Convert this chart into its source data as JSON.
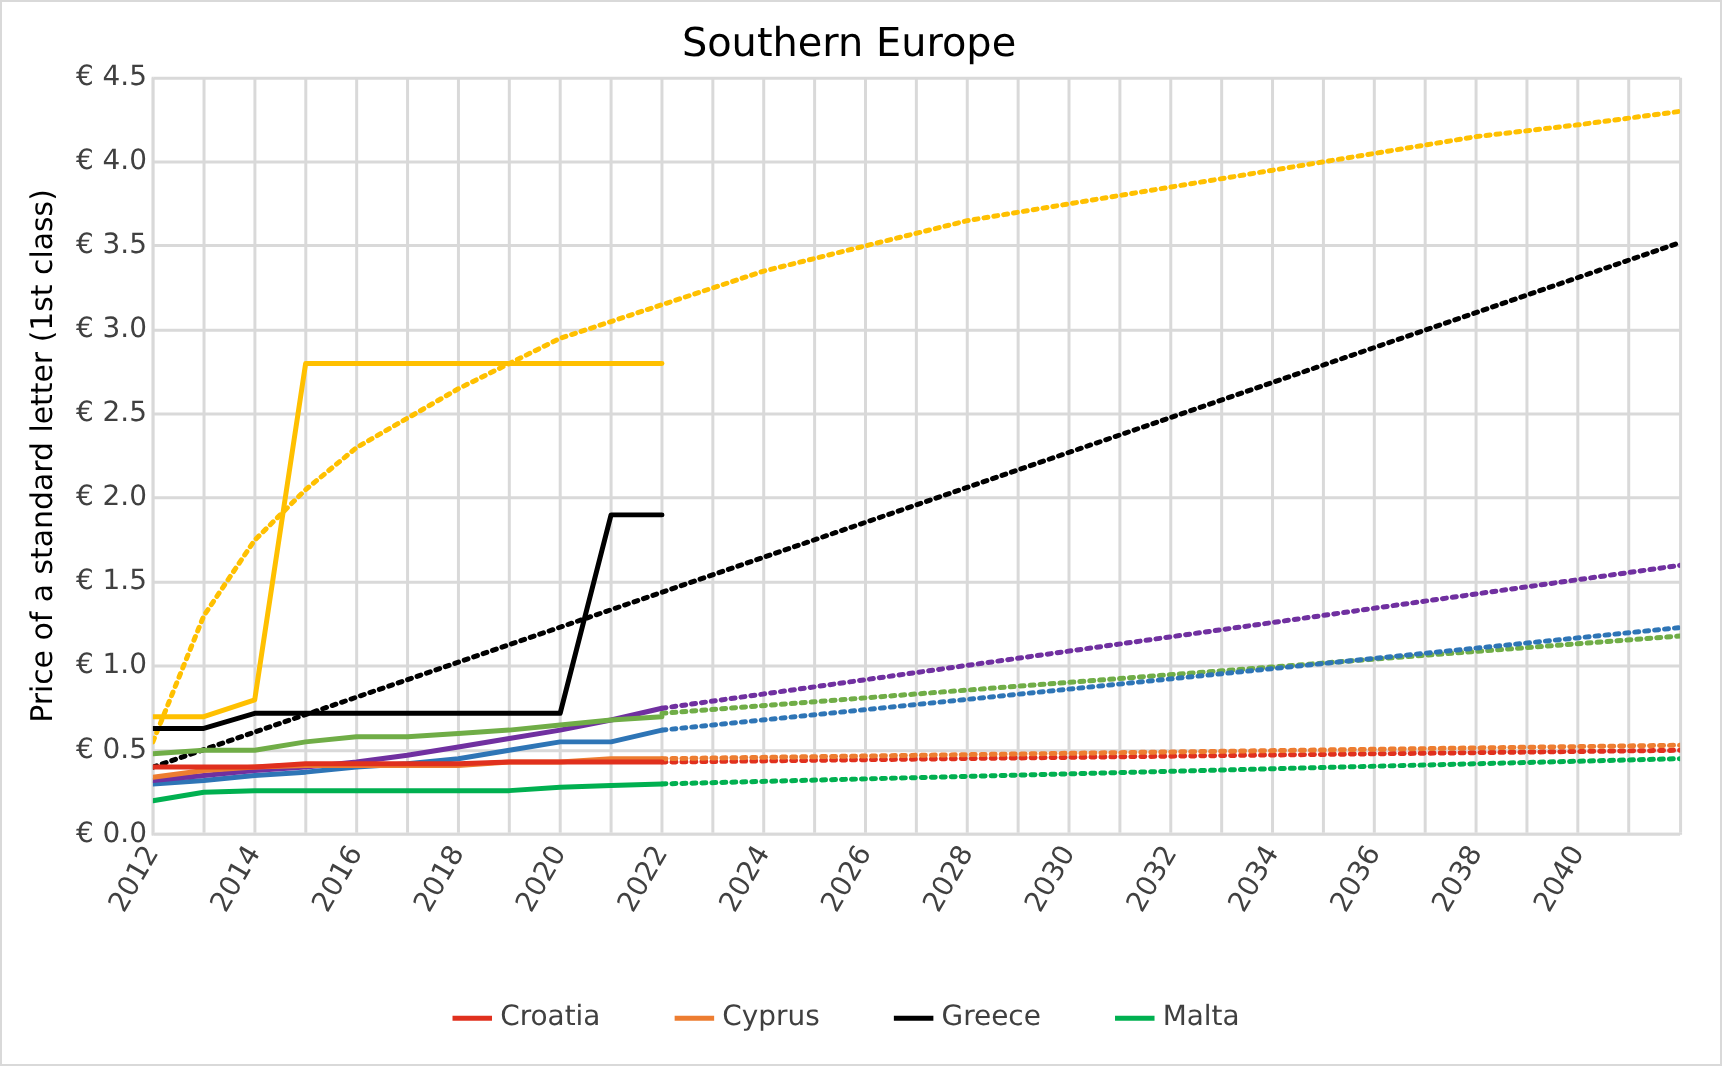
{
  "chart_data": {
    "type": "line",
    "title": "Southern Europe",
    "ylabel": "Price of a standard letter (1st class)",
    "x": [
      2012,
      2013,
      2014,
      2015,
      2016,
      2017,
      2018,
      2019,
      2020,
      2021,
      2022
    ],
    "xlim": [
      2012,
      2042
    ],
    "xticks": [
      2012,
      {
        "value": 2013,
        "label": null
      },
      2014,
      {
        "value": 2015,
        "label": null
      },
      2016,
      {
        "value": 2017,
        "label": null
      },
      2018,
      {
        "value": 2019,
        "label": null
      },
      2020,
      {
        "value": 2021,
        "label": null
      },
      2022,
      {
        "value": 2023,
        "label": null
      },
      2024,
      {
        "value": 2025,
        "label": null
      },
      2026,
      {
        "value": 2027,
        "label": null
      },
      2028,
      {
        "value": 2029,
        "label": null
      },
      2030,
      {
        "value": 2031,
        "label": null
      },
      2032,
      {
        "value": 2033,
        "label": null
      },
      2034,
      {
        "value": 2035,
        "label": null
      },
      2036,
      {
        "value": 2037,
        "label": null
      },
      2038,
      {
        "value": 2039,
        "label": null
      },
      2040,
      {
        "value": 2041,
        "label": null
      },
      {
        "value": 2042,
        "label": null
      }
    ],
    "ylim": [
      0,
      4.5
    ],
    "yticks": [
      {
        "value": 0,
        "label": "€ 0.0"
      },
      {
        "value": 0.5,
        "label": "€ 0.5"
      },
      {
        "value": 1,
        "label": "€ 1.0"
      },
      {
        "value": 1.5,
        "label": "€ 1.5"
      },
      {
        "value": 2,
        "label": "€ 2.0"
      },
      {
        "value": 2.5,
        "label": "€ 2.5"
      },
      {
        "value": 3,
        "label": "€ 3.0"
      },
      {
        "value": 3.5,
        "label": "€ 3.5"
      },
      {
        "value": 4,
        "label": "€ 4.0"
      },
      {
        "value": 4.5,
        "label": "€ 4.5"
      }
    ],
    "grid": true,
    "legend": "bottom",
    "marker": "none",
    "line_style": "solid",
    "series": [
      {
        "name": "Croatia",
        "color": "#e0301e",
        "values": [
          0.4,
          0.4,
          0.4,
          0.42,
          0.42,
          0.42,
          0.42,
          0.43,
          0.43,
          0.43,
          0.43
        ]
      },
      {
        "name": "Cyprus",
        "color": "#ed7d31",
        "values": [
          0.34,
          0.38,
          0.4,
          0.41,
          0.41,
          0.41,
          0.41,
          0.43,
          0.43,
          0.45,
          0.45
        ]
      },
      {
        "name": "Greece",
        "color": "#000000",
        "values": [
          0.63,
          0.63,
          0.72,
          0.72,
          0.72,
          0.72,
          0.72,
          0.72,
          0.72,
          1.9,
          1.9
        ]
      },
      {
        "name": "Malta",
        "color": "#00b050",
        "values": [
          0.2,
          0.25,
          0.26,
          0.26,
          0.26,
          0.26,
          0.26,
          0.26,
          0.28,
          0.29,
          0.3
        ]
      },
      {
        "color": "#ffc000",
        "values": [
          0.7,
          0.7,
          0.8,
          2.8,
          2.8,
          2.8,
          2.8,
          2.8,
          2.8,
          2.8,
          2.8
        ]
      },
      {
        "color": "#70ad47",
        "values": [
          0.48,
          0.5,
          0.5,
          0.55,
          0.58,
          0.58,
          0.6,
          0.62,
          0.65,
          0.68,
          0.7
        ]
      },
      {
        "color": "#7030a0",
        "values": [
          0.32,
          0.35,
          0.38,
          0.4,
          0.43,
          0.47,
          0.52,
          0.57,
          0.62,
          0.68,
          0.75
        ]
      },
      {
        "color": "#2e75b6",
        "values": [
          0.3,
          0.32,
          0.35,
          0.37,
          0.4,
          0.42,
          0.45,
          0.5,
          0.55,
          0.55,
          0.62
        ]
      },
      {
        "type": "line",
        "line_style": "dotted",
        "color": "#ffc000",
        "x": [
          2012,
          2013,
          2014,
          2015,
          2016,
          2018,
          2020,
          2022,
          2024,
          2026,
          2028,
          2030,
          2032,
          2034,
          2036,
          2038,
          2040,
          2042
        ],
        "values": [
          0.55,
          1.3,
          1.75,
          2.05,
          2.3,
          2.65,
          2.95,
          3.15,
          3.35,
          3.5,
          3.65,
          3.75,
          3.85,
          3.95,
          4.05,
          4.15,
          4.22,
          4.3
        ]
      },
      {
        "type": "line",
        "line_style": "dotted",
        "color": "#000000",
        "x": [
          2012,
          2042
        ],
        "values": [
          0.4,
          3.52
        ]
      },
      {
        "type": "line",
        "line_style": "dotted",
        "color": "#7030a0",
        "x": [
          2022,
          2042
        ],
        "values": [
          0.75,
          1.6
        ]
      },
      {
        "type": "line",
        "line_style": "dotted",
        "color": "#2e75b6",
        "x": [
          2022,
          2042
        ],
        "values": [
          0.62,
          1.23
        ]
      },
      {
        "type": "line",
        "line_style": "dotted",
        "color": "#70ad47",
        "x": [
          2022,
          2042
        ],
        "values": [
          0.72,
          1.18
        ]
      },
      {
        "type": "line",
        "line_style": "dotted",
        "color": "#ed7d31",
        "x": [
          2022,
          2042
        ],
        "values": [
          0.45,
          0.53
        ]
      },
      {
        "type": "line",
        "line_style": "dotted",
        "color": "#e0301e",
        "x": [
          2022,
          2042
        ],
        "values": [
          0.43,
          0.5
        ]
      },
      {
        "type": "line",
        "line_style": "dotted",
        "color": "#00b050",
        "x": [
          2022,
          2042
        ],
        "values": [
          0.3,
          0.45
        ]
      }
    ]
  }
}
